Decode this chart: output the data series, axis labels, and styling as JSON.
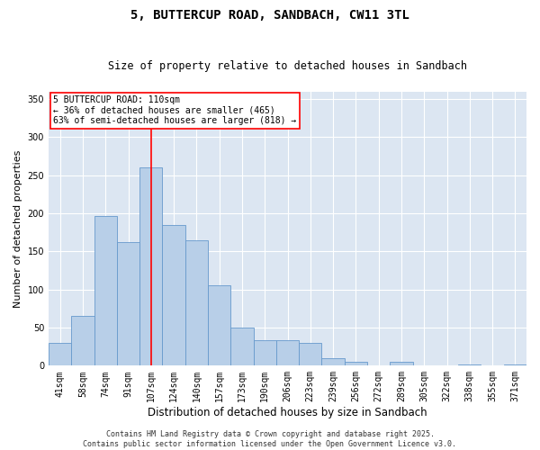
{
  "title": "5, BUTTERCUP ROAD, SANDBACH, CW11 3TL",
  "subtitle": "Size of property relative to detached houses in Sandbach",
  "xlabel": "Distribution of detached houses by size in Sandbach",
  "ylabel": "Number of detached properties",
  "categories": [
    "41sqm",
    "58sqm",
    "74sqm",
    "91sqm",
    "107sqm",
    "124sqm",
    "140sqm",
    "157sqm",
    "173sqm",
    "190sqm",
    "206sqm",
    "223sqm",
    "239sqm",
    "256sqm",
    "272sqm",
    "289sqm",
    "305sqm",
    "322sqm",
    "338sqm",
    "355sqm",
    "371sqm"
  ],
  "values": [
    30,
    65,
    197,
    162,
    260,
    185,
    165,
    105,
    50,
    33,
    33,
    30,
    10,
    5,
    0,
    5,
    0,
    0,
    2,
    0,
    2
  ],
  "bar_color": "#b8cfe8",
  "bar_edge_color": "#6699cc",
  "background_color": "#dce6f2",
  "red_line_index": 4,
  "annotation_text": "5 BUTTERCUP ROAD: 110sqm\n← 36% of detached houses are smaller (465)\n63% of semi-detached houses are larger (818) →",
  "footer_text": "Contains HM Land Registry data © Crown copyright and database right 2025.\nContains public sector information licensed under the Open Government Licence v3.0.",
  "ylim": [
    0,
    360
  ],
  "yticks": [
    0,
    50,
    100,
    150,
    200,
    250,
    300,
    350
  ],
  "title_fontsize": 10,
  "subtitle_fontsize": 8.5,
  "ylabel_fontsize": 8,
  "xlabel_fontsize": 8.5,
  "tick_fontsize": 7,
  "annotation_fontsize": 7,
  "footer_fontsize": 6
}
